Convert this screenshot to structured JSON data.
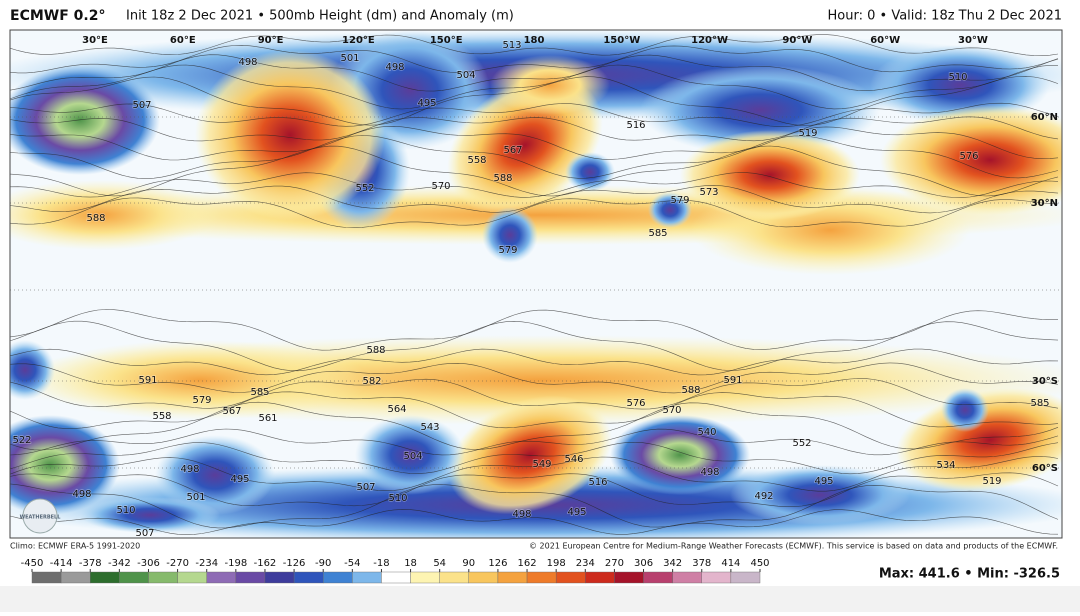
{
  "header": {
    "model": "ECMWF 0.2°",
    "subtitle": "Init 18z 2 Dec 2021 • 500mb Height (dm) and Anomaly (m)",
    "valid": "Hour: 0 • Valid: 18z Thu 2 Dec 2021"
  },
  "map": {
    "lon_labels": [
      "30°E",
      "60°E",
      "90°E",
      "120°E",
      "150°E",
      "180",
      "150°W",
      "120°W",
      "90°W",
      "60°W",
      "30°W"
    ],
    "lat_labels": [
      "60°N",
      "30°N",
      "30°S",
      "60°S"
    ],
    "contour_labels": [
      "498",
      "501",
      "498",
      "504",
      "495",
      "513",
      "507",
      "510",
      "516",
      "519",
      "558",
      "567",
      "588",
      "579",
      "585",
      "573",
      "576",
      "570",
      "579",
      "588",
      "552",
      "591",
      "585",
      "579",
      "567",
      "561",
      "558",
      "582",
      "564",
      "543",
      "576",
      "570",
      "588",
      "591",
      "540",
      "552",
      "549",
      "546",
      "516",
      "498",
      "495",
      "510",
      "507",
      "504",
      "498",
      "495",
      "501",
      "498",
      "522",
      "510",
      "507",
      "498",
      "492",
      "495",
      "534",
      "519",
      "585",
      "588"
    ],
    "logo": "WEATHERBELL"
  },
  "footer": {
    "climo": "Climo: ECMWF ERA-5 1991-2020",
    "copyright": "© 2021 European Centre for Medium-Range Weather Forecasts (ECMWF). This service is based on data and products of the ECMWF.",
    "maxmin": "Max: 441.6 • Min: -326.5"
  },
  "colorbar": {
    "ticks": [
      -450,
      -414,
      -378,
      -342,
      -306,
      -270,
      -234,
      -198,
      -162,
      -126,
      -90,
      -54,
      -18,
      18,
      54,
      90,
      126,
      162,
      198,
      234,
      270,
      306,
      342,
      378,
      414,
      450
    ],
    "colors": [
      "#6e6e6e",
      "#9a9a9a",
      "#2e6e2e",
      "#4f934a",
      "#86ba6c",
      "#b5d88f",
      "#8e6bb5",
      "#6a4aa5",
      "#3e3c9c",
      "#2f55bb",
      "#3f82d3",
      "#7db7ea",
      "#ffffff",
      "#fdf4b2",
      "#fbe28a",
      "#f8c65e",
      "#f4a23f",
      "#ee7b2a",
      "#e2521f",
      "#cd2b1d",
      "#a5132a",
      "#b8406e",
      "#cf7fa5",
      "#e3b5cc",
      "#c9b6c9"
    ]
  }
}
